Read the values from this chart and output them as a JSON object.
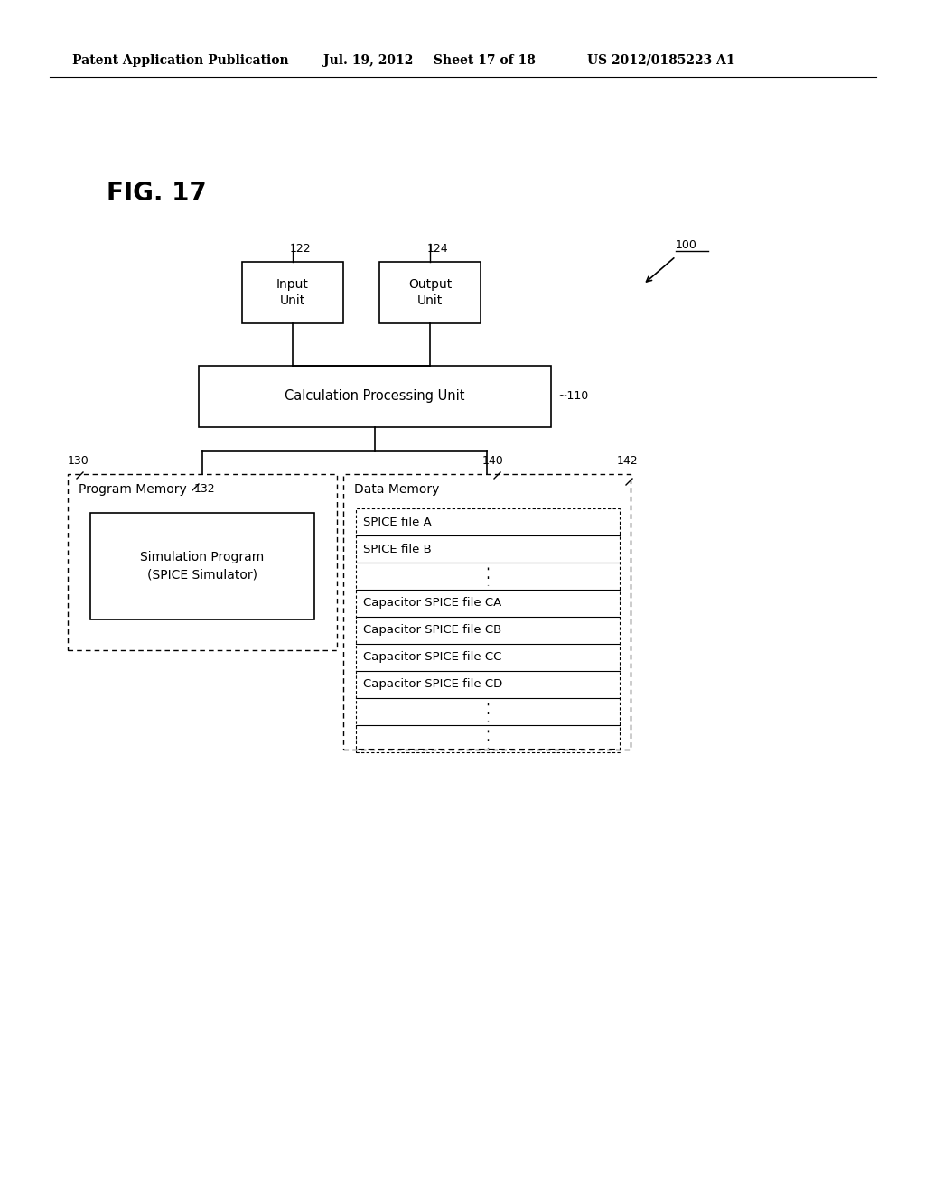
{
  "bg_color": "#ffffff",
  "header_text": "Patent Application Publication",
  "header_date": "Jul. 19, 2012",
  "header_sheet": "Sheet 17 of 18",
  "header_patent": "US 2012/0185223 A1",
  "fig_label": "FIG. 17",
  "label_100": "100",
  "label_110": "~110",
  "label_122": "122",
  "label_124": "124",
  "label_130": "130",
  "label_132": "132",
  "label_140": "140",
  "label_142": "142",
  "box_calc_text": "Calculation Processing Unit",
  "box_prog_mem_text": "Program Memory",
  "box_sim_prog_text": "Simulation Program\n(SPICE Simulator)",
  "box_data_mem_text": "Data Memory",
  "data_rows": [
    "SPICE file A",
    "SPICE file B",
    "",
    "Capacitor SPICE file CA",
    "Capacitor SPICE file CB",
    "Capacitor SPICE file CC",
    "Capacitor SPICE file CD",
    "",
    ""
  ],
  "line_color": "#000000",
  "text_color": "#000000"
}
